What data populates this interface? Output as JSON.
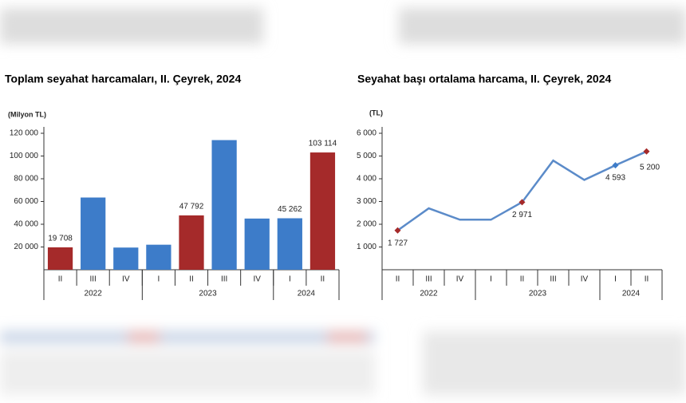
{
  "chart_data": [
    {
      "type": "bar",
      "title": "Toplam seyahat harcamaları, II. Çeyrek, 2024",
      "y_axis_label": "(Milyon TL)",
      "categories": [
        "II",
        "III",
        "IV",
        "I",
        "II",
        "III",
        "IV",
        "I",
        "II"
      ],
      "groups": [
        {
          "label": "2022",
          "span": 3
        },
        {
          "label": "2023",
          "span": 4
        },
        {
          "label": "2024",
          "span": 2
        }
      ],
      "values": [
        19708,
        63500,
        19500,
        22000,
        47792,
        114000,
        45000,
        45262,
        103114
      ],
      "value_labels": [
        "19 708",
        null,
        null,
        null,
        "47 792",
        null,
        null,
        "45 262",
        "103 114"
      ],
      "colors": [
        "#a52a2a",
        "#3d7cc9",
        "#3d7cc9",
        "#3d7cc9",
        "#a52a2a",
        "#3d7cc9",
        "#3d7cc9",
        "#3d7cc9",
        "#a52a2a"
      ],
      "ylim": [
        0,
        120000
      ],
      "yticks": [
        {
          "value": 20000,
          "label": "20 000"
        },
        {
          "value": 40000,
          "label": "40 000"
        },
        {
          "value": 60000,
          "label": "60 000"
        },
        {
          "value": 80000,
          "label": "80 000"
        },
        {
          "value": 100000,
          "label": "100 000"
        },
        {
          "value": 120000,
          "label": "120 000"
        }
      ]
    },
    {
      "type": "line",
      "title": "Seyahat başı ortalama harcama, II. Çeyrek, 2024",
      "y_axis_label": "(TL)",
      "categories": [
        "II",
        "III",
        "IV",
        "I",
        "II",
        "III",
        "IV",
        "I",
        "II"
      ],
      "groups": [
        {
          "label": "2022",
          "span": 3
        },
        {
          "label": "2023",
          "span": 4
        },
        {
          "label": "2024",
          "span": 2
        }
      ],
      "values": [
        1727,
        2700,
        2200,
        2200,
        2971,
        4800,
        3950,
        4593,
        5200
      ],
      "value_labels": [
        "1 727",
        null,
        null,
        null,
        "2 971",
        null,
        null,
        "4 593",
        "5 200"
      ],
      "color": "#5b8bc9",
      "marker_colors": [
        "#a52a2a",
        null,
        null,
        null,
        "#a52a2a",
        null,
        null,
        "#3d7cc9",
        "#a52a2a"
      ],
      "ylim": [
        0,
        6000
      ],
      "yticks": [
        {
          "value": 1000,
          "label": "1 000"
        },
        {
          "value": 2000,
          "label": "2 000"
        },
        {
          "value": 3000,
          "label": "3 000"
        },
        {
          "value": 4000,
          "label": "4 000"
        },
        {
          "value": 5000,
          "label": "5 000"
        },
        {
          "value": 6000,
          "label": "6 000"
        }
      ]
    }
  ]
}
